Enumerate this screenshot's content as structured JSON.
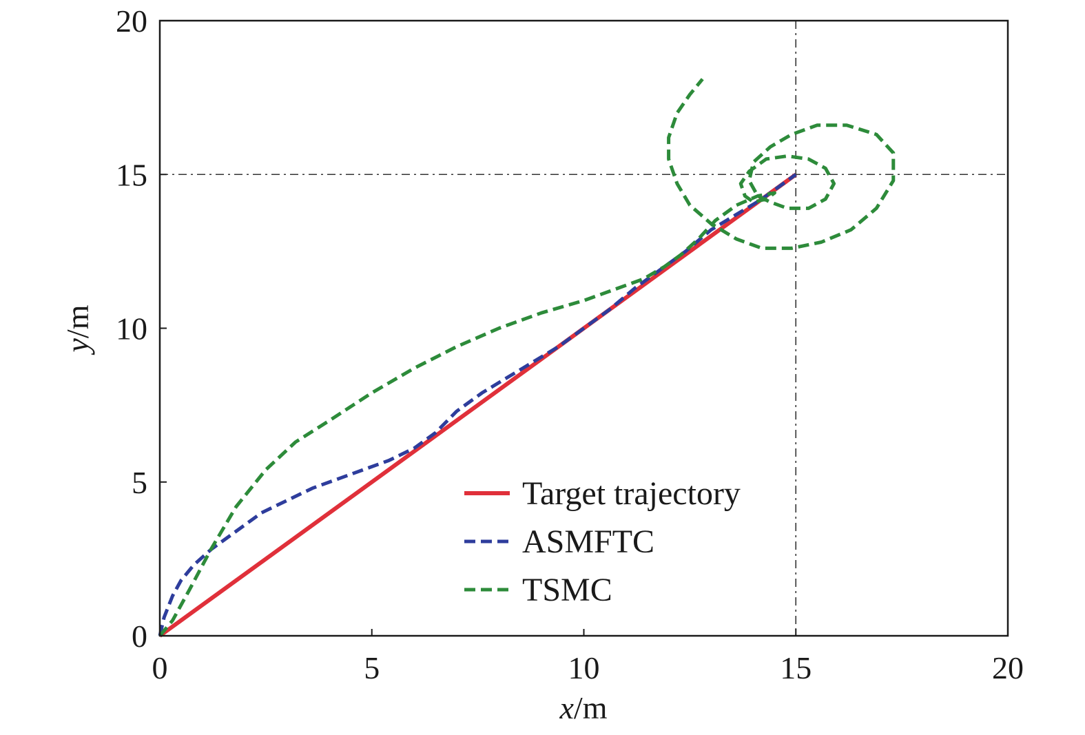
{
  "chart_data": {
    "type": "line",
    "xlabel": {
      "var": "x",
      "unit": "/m"
    },
    "ylabel": {
      "var": "y",
      "unit": "/m"
    },
    "xlim": [
      0,
      20
    ],
    "ylim": [
      0,
      20
    ],
    "xticks": [
      "0",
      "5",
      "10",
      "15",
      "20"
    ],
    "yticks": [
      "0",
      "5",
      "10",
      "15",
      "20"
    ],
    "grid": false,
    "reference_lines": {
      "x": 15,
      "y": 15
    },
    "legend_position": "bottom-right",
    "series": [
      {
        "name": "Target trajectory",
        "color": "#e0303a",
        "dash": "solid",
        "x": [
          0,
          15
        ],
        "y": [
          0,
          15
        ]
      },
      {
        "name": "ASMFTC",
        "color": "#2e3d9c",
        "dash": "dashed",
        "x": [
          0,
          0.1,
          0.3,
          0.5,
          0.8,
          1.2,
          1.8,
          2.4,
          3.0,
          3.6,
          4.2,
          4.8,
          5.4,
          6.0,
          6.5,
          7.0,
          7.6,
          8.2,
          8.8,
          9.4,
          10.0,
          10.6,
          11.2,
          11.8,
          12.4,
          13.0,
          13.6,
          14.2,
          14.6,
          15.0
        ],
        "y": [
          0,
          0.6,
          1.3,
          1.8,
          2.3,
          2.8,
          3.4,
          4.0,
          4.4,
          4.8,
          5.1,
          5.4,
          5.7,
          6.1,
          6.6,
          7.3,
          7.9,
          8.4,
          8.9,
          9.4,
          10.0,
          10.6,
          11.3,
          11.9,
          12.5,
          13.2,
          13.7,
          14.2,
          14.6,
          15.0
        ]
      },
      {
        "name": "TSMC",
        "color": "#2d8b3a",
        "dash": "dashed",
        "x": [
          0,
          0.3,
          0.7,
          1.2,
          1.8,
          2.5,
          3.2,
          4.0,
          5.0,
          6.0,
          7.0,
          8.0,
          9.0,
          10.0,
          10.8,
          11.4,
          11.9,
          12.3,
          12.7,
          13.1,
          13.6,
          14.1,
          14.5,
          14.3,
          14.0,
          13.8,
          13.7,
          13.9,
          14.3,
          14.8,
          15.3,
          15.7,
          15.9,
          15.7,
          15.3,
          14.8,
          14.4,
          14.1,
          13.9,
          14.0,
          14.4,
          14.9,
          15.5,
          16.2,
          16.9,
          17.3,
          17.3,
          16.9,
          16.3,
          15.6,
          14.9,
          14.2,
          13.6,
          13.0,
          12.5,
          12.2,
          12.0,
          12.0,
          12.2,
          12.5,
          12.8
        ],
        "y": [
          0,
          0.5,
          1.5,
          2.8,
          4.2,
          5.4,
          6.3,
          7.0,
          7.9,
          8.7,
          9.4,
          10.0,
          10.5,
          10.9,
          11.3,
          11.6,
          12.0,
          12.4,
          12.9,
          13.5,
          14.0,
          14.3,
          14.4,
          14.2,
          14.1,
          14.3,
          14.7,
          15.1,
          15.5,
          15.6,
          15.5,
          15.2,
          14.7,
          14.2,
          13.9,
          13.9,
          14.1,
          14.3,
          14.8,
          15.4,
          15.9,
          16.3,
          16.6,
          16.6,
          16.3,
          15.7,
          14.8,
          13.9,
          13.2,
          12.8,
          12.6,
          12.6,
          12.9,
          13.4,
          14.0,
          14.7,
          15.5,
          16.2,
          17.0,
          17.6,
          18.1
        ]
      }
    ]
  }
}
